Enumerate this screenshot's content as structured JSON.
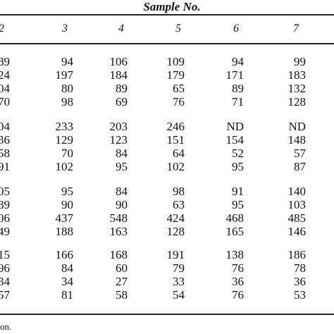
{
  "table": {
    "title": "Sample No.",
    "columns": [
      "2",
      "3",
      "4",
      "5",
      "6",
      "7"
    ],
    "groups": [
      {
        "rows": [
          [
            "89",
            "94",
            "106",
            "109",
            "94",
            "99"
          ],
          [
            "24",
            "197",
            "184",
            "179",
            "171",
            "183"
          ],
          [
            "04",
            "80",
            "89",
            "65",
            "89",
            "132"
          ],
          [
            "70",
            "98",
            "69",
            "76",
            "71",
            "128"
          ]
        ]
      },
      {
        "rows": [
          [
            "04",
            "233",
            "203",
            "246",
            "ND",
            "ND"
          ],
          [
            "36",
            "129",
            "123",
            "151",
            "154",
            "148"
          ],
          [
            "58",
            "70",
            "84",
            "64",
            "52",
            "57"
          ],
          [
            "91",
            "102",
            "95",
            "102",
            "95",
            "87"
          ]
        ]
      },
      {
        "rows": [
          [
            "05",
            "95",
            "84",
            "98",
            "91",
            "140"
          ],
          [
            "89",
            "90",
            "90",
            "63",
            "95",
            "103"
          ],
          [
            "06",
            "437",
            "548",
            "424",
            "468",
            "485"
          ],
          [
            "49",
            "188",
            "163",
            "128",
            "165",
            "146"
          ]
        ]
      },
      {
        "rows": [
          [
            "15",
            "166",
            "168",
            "191",
            "138",
            "186"
          ],
          [
            "96",
            "84",
            "60",
            "79",
            "76",
            "78"
          ],
          [
            "34",
            "34",
            "27",
            "33",
            "36",
            "36"
          ],
          [
            "57",
            "81",
            "58",
            "54",
            "76",
            "53"
          ]
        ]
      }
    ],
    "footnote": "on."
  }
}
